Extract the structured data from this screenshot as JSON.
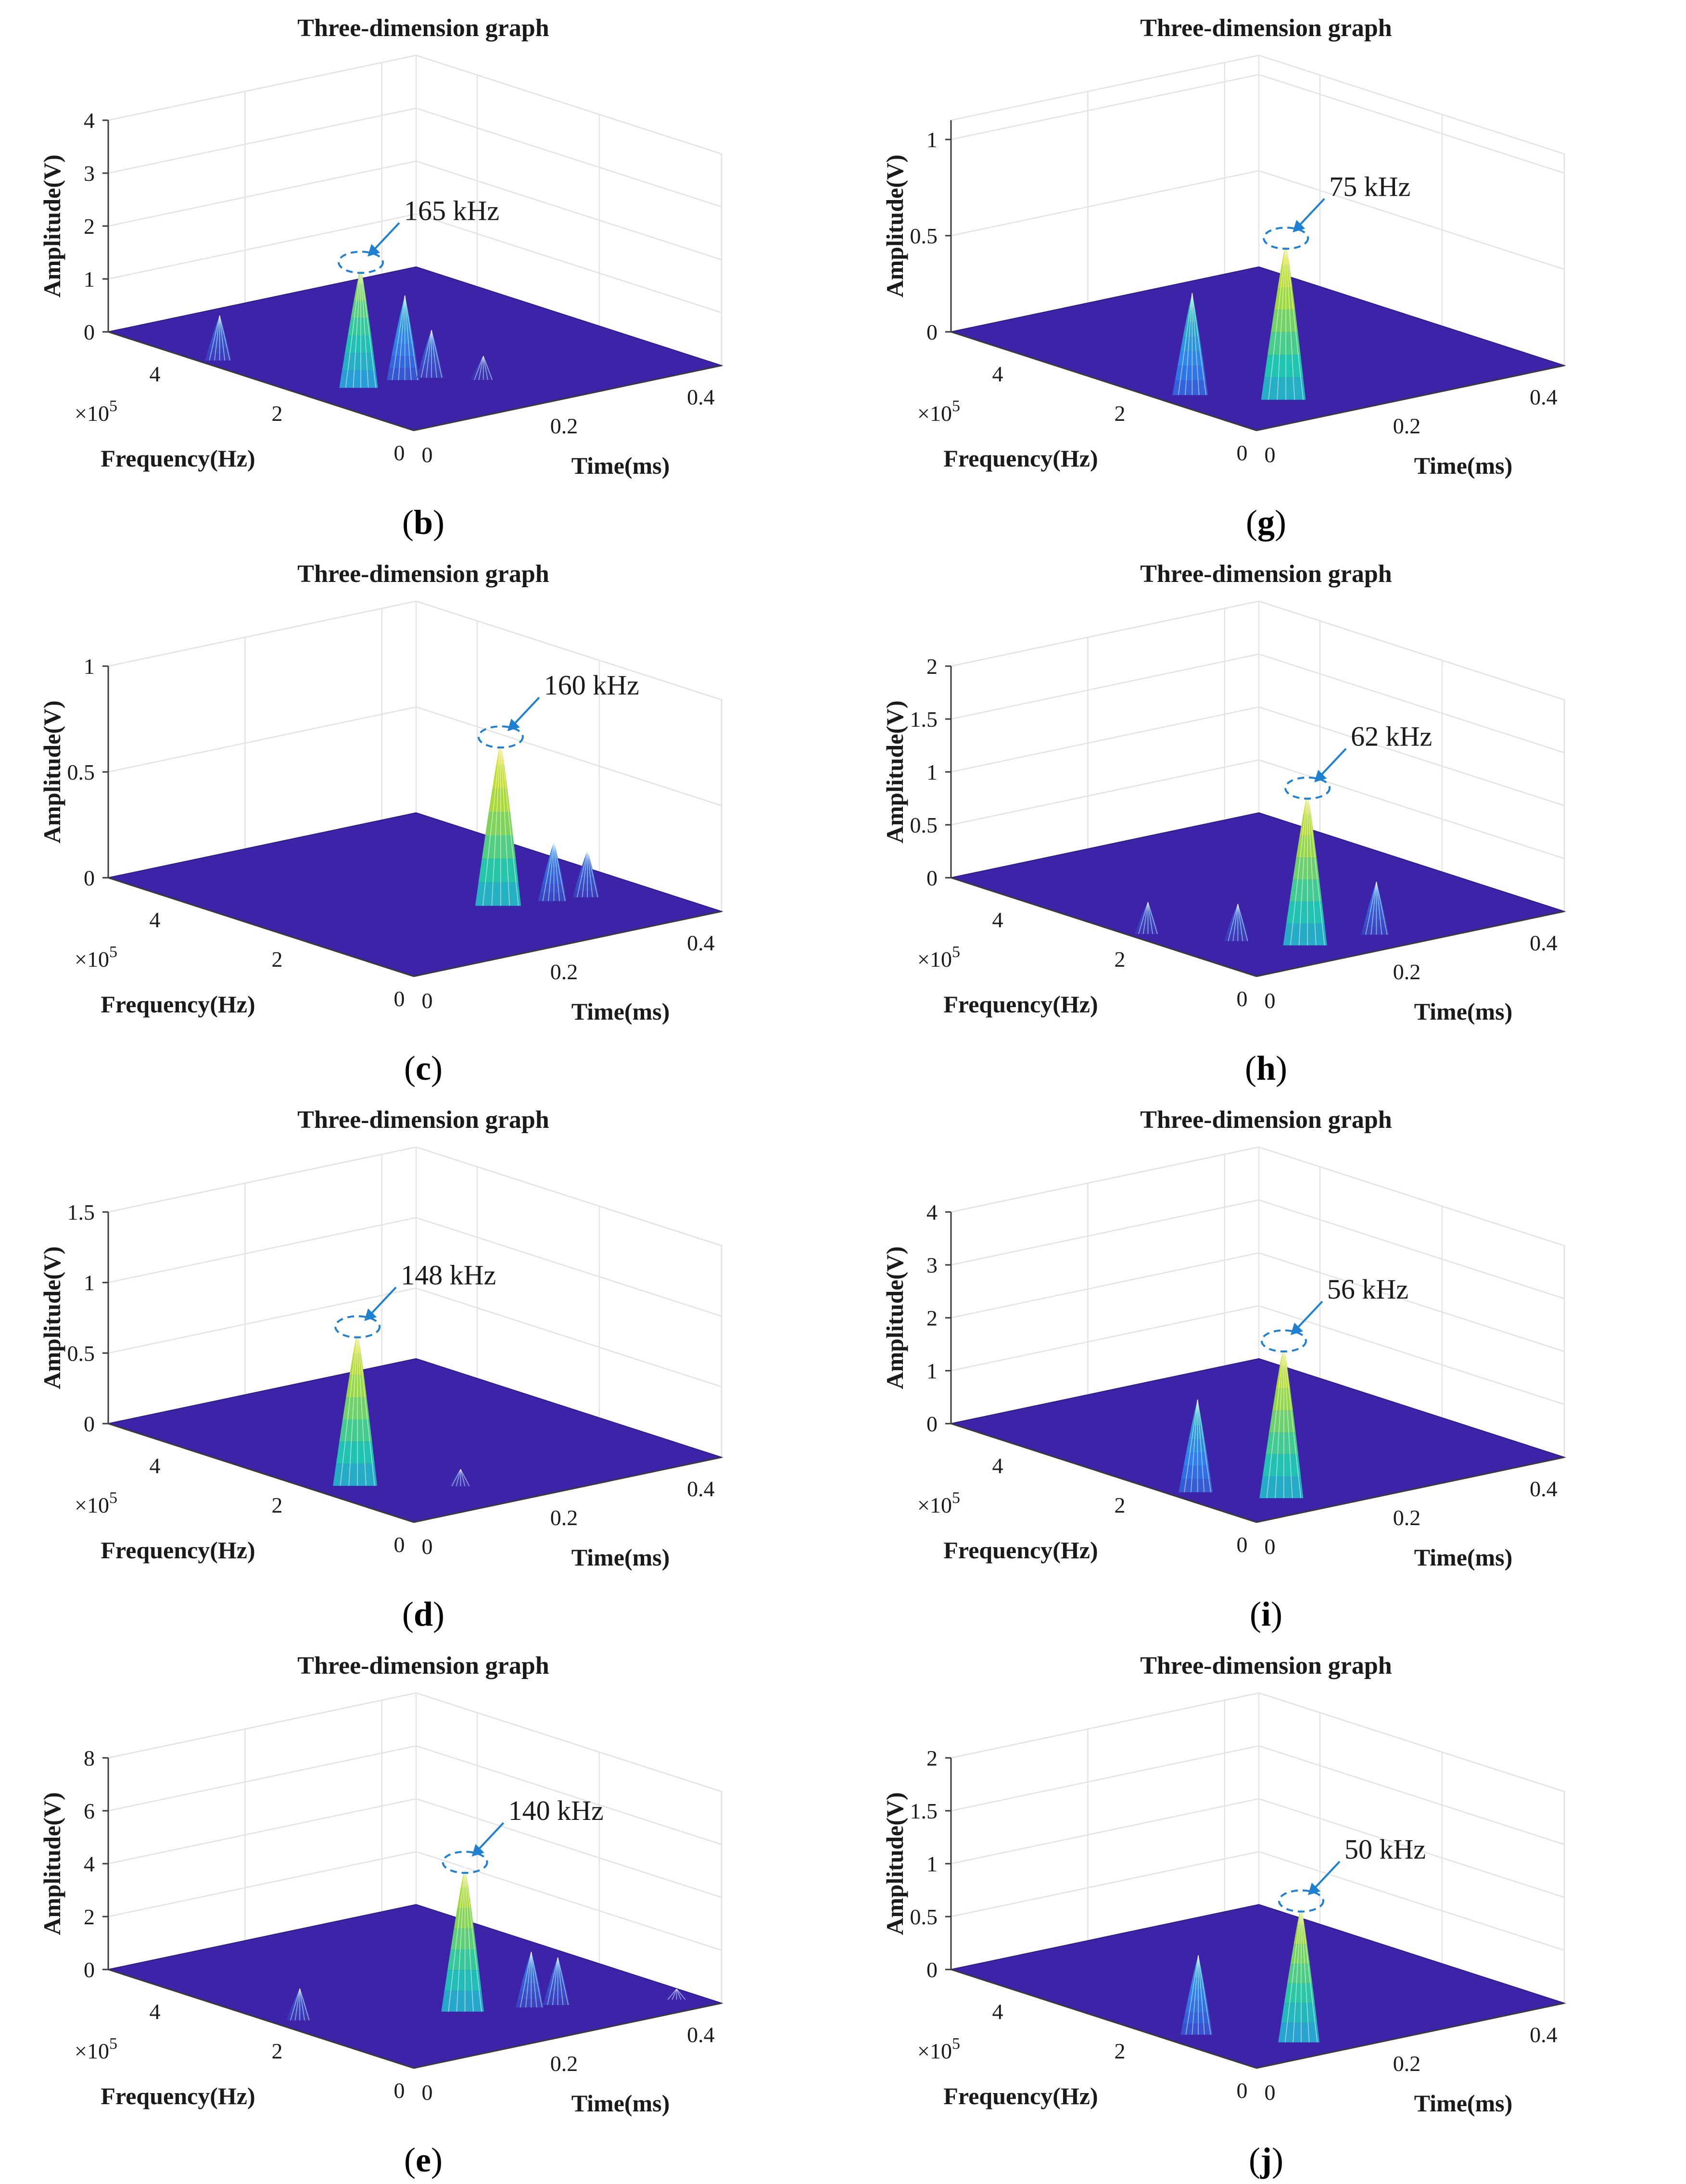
{
  "figure": {
    "panels": [
      {
        "id": "b",
        "caption_letter": "b",
        "peak_label": "165 kHz"
      },
      {
        "id": "g",
        "caption_letter": "g",
        "peak_label": "75 kHz"
      },
      {
        "id": "c",
        "caption_letter": "c",
        "peak_label": "160 kHz"
      },
      {
        "id": "h",
        "caption_letter": "h",
        "peak_label": "62 kHz"
      },
      {
        "id": "d",
        "caption_letter": "d",
        "peak_label": "148 kHz"
      },
      {
        "id": "i",
        "caption_letter": "i",
        "peak_label": "56 kHz"
      },
      {
        "id": "e",
        "caption_letter": "e",
        "peak_label": "140 kHz"
      },
      {
        "id": "j",
        "caption_letter": "j",
        "peak_label": "50 kHz"
      }
    ]
  },
  "colors": {
    "floor": "#3d23a8",
    "low": "#2f7ff0",
    "mid": "#21c5b0",
    "high": "#a4d93a",
    "peak": "#f5e21f",
    "annotation": "#1f7fd0"
  },
  "chart_data": [
    {
      "panel": "b",
      "type": "surface3d",
      "title": "Three-dimension graph",
      "xlabel": "Time(ms)",
      "ylabel": "Frequency(Hz)",
      "zlabel": "Amplitude(V)",
      "y_multiplier": "×10",
      "y_multiplier_exp": "5",
      "xlim": [
        0,
        0.45
      ],
      "ylim": [
        0,
        5
      ],
      "zlim": [
        0,
        4
      ],
      "x_ticks": [
        "0",
        "0.2",
        "0.4"
      ],
      "y_ticks": [
        "0",
        "2",
        "4"
      ],
      "z_ticks": [
        "0",
        "1",
        "2",
        "3",
        "4"
      ],
      "peak": {
        "time_ms": 0.07,
        "freq_1e5": 1.65,
        "amplitude": 2.3,
        "label": "165 kHz"
      },
      "secondary_peaks": [
        {
          "time_ms": 0.02,
          "freq_1e5": 3.4,
          "amplitude": 0.85
        },
        {
          "time_ms": 0.13,
          "freq_1e5": 1.6,
          "amplitude": 1.6
        },
        {
          "time_ms": 0.16,
          "freq_1e5": 1.5,
          "amplitude": 0.9
        },
        {
          "time_ms": 0.2,
          "freq_1e5": 1.1,
          "amplitude": 0.45
        }
      ]
    },
    {
      "panel": "g",
      "type": "surface3d",
      "title": "Three-dimension graph",
      "xlabel": "Time(ms)",
      "ylabel": "Frequency(Hz)",
      "zlabel": "Amplitude(V)",
      "y_multiplier": "×10",
      "y_multiplier_exp": "5",
      "xlim": [
        0,
        0.45
      ],
      "ylim": [
        0,
        5
      ],
      "zlim": [
        0,
        1.1
      ],
      "x_ticks": [
        "0",
        "0.2",
        "0.4"
      ],
      "y_ticks": [
        "0",
        "2",
        "4"
      ],
      "z_ticks": [
        "0",
        "0.5",
        "1"
      ],
      "peak": {
        "time_ms": 0.11,
        "freq_1e5": 0.75,
        "amplitude": 0.82,
        "label": "75 kHz"
      },
      "secondary_peaks": [
        {
          "time_ms": 0.04,
          "freq_1e5": 1.5,
          "amplitude": 0.53
        }
      ]
    },
    {
      "panel": "c",
      "type": "surface3d",
      "title": "Three-dimension graph",
      "xlabel": "Time(ms)",
      "ylabel": "Frequency(Hz)",
      "zlabel": "Amplitude(V)",
      "y_multiplier": "×10",
      "y_multiplier_exp": "5",
      "xlim": [
        0,
        0.45
      ],
      "ylim": [
        0,
        5
      ],
      "zlim": [
        0,
        1
      ],
      "x_ticks": [
        "0",
        "0.2",
        "0.4"
      ],
      "y_ticks": [
        "0",
        "2",
        "4"
      ],
      "z_ticks": [
        "0",
        "0.5",
        "1"
      ],
      "peak": {
        "time_ms": 0.27,
        "freq_1e5": 1.6,
        "amplitude": 0.78,
        "label": "160 kHz"
      },
      "secondary_peaks": [
        {
          "time_ms": 0.33,
          "freq_1e5": 1.4,
          "amplitude": 0.28
        },
        {
          "time_ms": 0.37,
          "freq_1e5": 1.3,
          "amplitude": 0.22
        }
      ]
    },
    {
      "panel": "h",
      "type": "surface3d",
      "title": "Three-dimension graph",
      "xlabel": "Time(ms)",
      "ylabel": "Frequency(Hz)",
      "zlabel": "Amplitude(V)",
      "y_multiplier": "×10",
      "y_multiplier_exp": "5",
      "xlim": [
        0,
        0.45
      ],
      "ylim": [
        0,
        5
      ],
      "zlim": [
        0,
        2
      ],
      "x_ticks": [
        "0",
        "0.2",
        "0.4"
      ],
      "y_ticks": [
        "0",
        "2",
        "4"
      ],
      "z_ticks": [
        "0",
        "0.5",
        "1",
        "1.5",
        "2"
      ],
      "peak": {
        "time_ms": 0.13,
        "freq_1e5": 0.62,
        "amplitude": 1.45,
        "label": "62 kHz"
      },
      "secondary_peaks": [
        {
          "time_ms": 0.02,
          "freq_1e5": 2.0,
          "amplitude": 0.3
        },
        {
          "time_ms": 0.08,
          "freq_1e5": 1.2,
          "amplitude": 0.35
        },
        {
          "time_ms": 0.22,
          "freq_1e5": 0.5,
          "amplitude": 0.5
        }
      ]
    },
    {
      "panel": "d",
      "type": "surface3d",
      "title": "Three-dimension graph",
      "xlabel": "Time(ms)",
      "ylabel": "Frequency(Hz)",
      "zlabel": "Amplitude(V)",
      "y_multiplier": "×10",
      "y_multiplier_exp": "5",
      "xlim": [
        0,
        0.45
      ],
      "ylim": [
        0,
        5
      ],
      "zlim": [
        0,
        1.5
      ],
      "x_ticks": [
        "0",
        "0.2",
        "0.4"
      ],
      "y_ticks": [
        "0",
        "2",
        "4"
      ],
      "z_ticks": [
        "0",
        "0.5",
        "1",
        "1.5"
      ],
      "peak": {
        "time_ms": 0.05,
        "freq_1e5": 1.48,
        "amplitude": 1.1,
        "label": "148 kHz"
      },
      "secondary_peaks": [
        {
          "time_ms": 0.14,
          "freq_1e5": 0.8,
          "amplitude": 0.12
        }
      ]
    },
    {
      "panel": "i",
      "type": "surface3d",
      "title": "Three-dimension graph",
      "xlabel": "Time(ms)",
      "ylabel": "Frequency(Hz)",
      "zlabel": "Amplitude(V)",
      "y_multiplier": "×10",
      "y_multiplier_exp": "5",
      "xlim": [
        0,
        0.45
      ],
      "ylim": [
        0,
        5
      ],
      "zlim": [
        0,
        4
      ],
      "x_ticks": [
        "0",
        "0.2",
        "0.4"
      ],
      "y_ticks": [
        "0",
        "2",
        "4"
      ],
      "z_ticks": [
        "0",
        "1",
        "2",
        "3",
        "4"
      ],
      "peak": {
        "time_ms": 0.09,
        "freq_1e5": 0.56,
        "amplitude": 2.9,
        "label": "56 kHz"
      },
      "secondary_peaks": [
        {
          "time_ms": 0.03,
          "freq_1e5": 1.3,
          "amplitude": 1.75
        }
      ]
    },
    {
      "panel": "e",
      "type": "surface3d",
      "title": "Three-dimension graph",
      "xlabel": "Time(ms)",
      "ylabel": "Frequency(Hz)",
      "zlabel": "Amplitude(V)",
      "y_multiplier": "×10",
      "y_multiplier_exp": "5",
      "xlim": [
        0,
        0.45
      ],
      "ylim": [
        0,
        5
      ],
      "zlim": [
        0,
        8
      ],
      "x_ticks": [
        "0",
        "0.2",
        "0.4"
      ],
      "y_ticks": [
        "0",
        "2",
        "4"
      ],
      "z_ticks": [
        "0",
        "2",
        "4",
        "6",
        "8"
      ],
      "peak": {
        "time_ms": 0.2,
        "freq_1e5": 1.4,
        "amplitude": 5.5,
        "label": "140 kHz"
      },
      "secondary_peaks": [
        {
          "time_ms": 0.03,
          "freq_1e5": 2.2,
          "amplitude": 1.2
        },
        {
          "time_ms": 0.27,
          "freq_1e5": 1.1,
          "amplitude": 2.1
        },
        {
          "time_ms": 0.3,
          "freq_1e5": 1.0,
          "amplitude": 1.8
        },
        {
          "time_ms": 0.42,
          "freq_1e5": 0.4,
          "amplitude": 0.4
        }
      ]
    },
    {
      "panel": "j",
      "type": "surface3d",
      "title": "Three-dimension graph",
      "xlabel": "Time(ms)",
      "ylabel": "Frequency(Hz)",
      "zlabel": "Amplitude(V)",
      "y_multiplier": "×10",
      "y_multiplier_exp": "5",
      "xlim": [
        0,
        0.45
      ],
      "ylim": [
        0,
        5
      ],
      "zlim": [
        0,
        2
      ],
      "x_ticks": [
        "0",
        "0.2",
        "0.4"
      ],
      "y_ticks": [
        "0",
        "2",
        "4"
      ],
      "z_ticks": [
        "0",
        "0.5",
        "1",
        "1.5",
        "2"
      ],
      "peak": {
        "time_ms": 0.11,
        "freq_1e5": 0.5,
        "amplitude": 1.3,
        "label": "50 kHz"
      },
      "secondary_peaks": [
        {
          "time_ms": 0.04,
          "freq_1e5": 1.4,
          "amplitude": 0.75
        }
      ]
    }
  ]
}
